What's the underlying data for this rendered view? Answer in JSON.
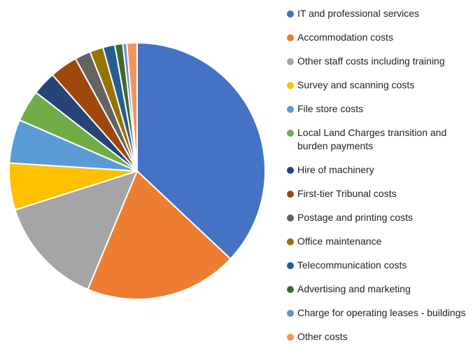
{
  "chart_data": {
    "type": "pie",
    "categories": [
      "IT and professional services",
      "Accommodation costs",
      "Other staff costs including training",
      "Survey and scanning costs",
      "File store costs",
      "Local Land Charges transition and burden payments",
      "Hire of machinery",
      "First-tier Tribunal costs",
      "Postage and printing costs",
      "Office maintenance",
      "Telecommunication costs",
      "Advertising and marketing",
      "Charge for operating leases - buildings",
      "Other costs"
    ],
    "values": [
      37,
      19.3,
      13.8,
      5.9,
      5.5,
      4,
      3,
      3.5,
      2,
      1.7,
      1.5,
      1,
      0.5,
      1.3
    ],
    "colors": [
      "#4472c4",
      "#ed7d31",
      "#a5a5a5",
      "#ffc000",
      "#5b9bd5",
      "#70ad47",
      "#264478",
      "#9e480e",
      "#636363",
      "#997300",
      "#255e91",
      "#43682b",
      "#698ed0",
      "#f1975a"
    ],
    "legend": "right"
  }
}
